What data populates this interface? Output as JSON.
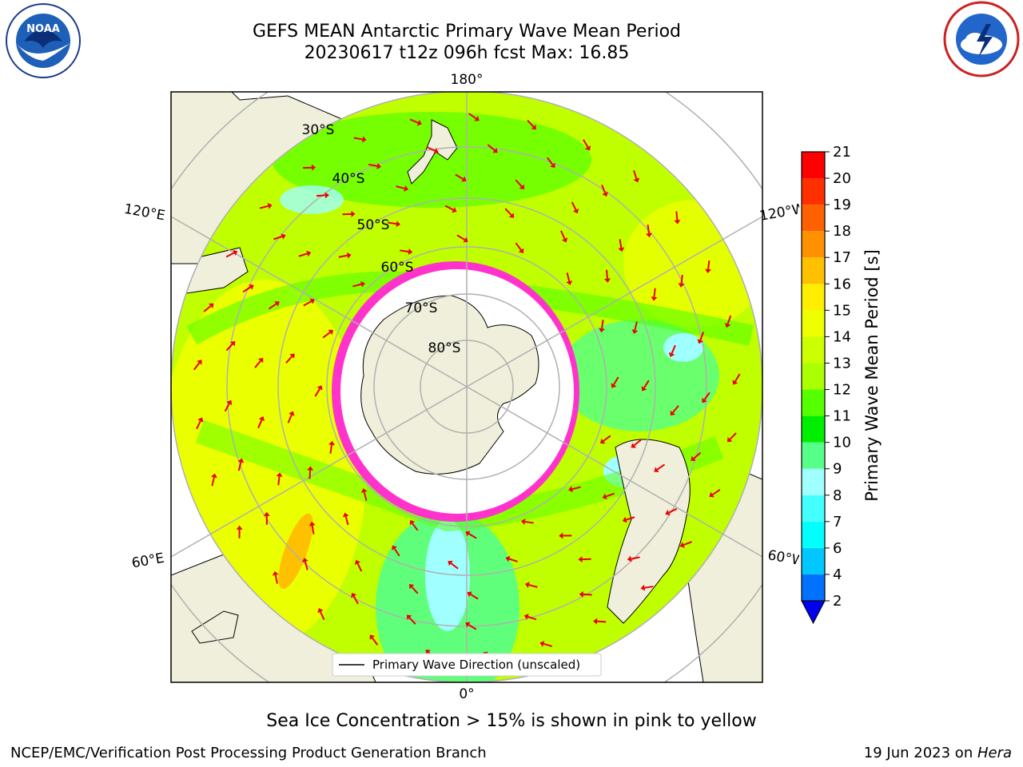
{
  "title": {
    "line1": "GEFS MEAN Antarctic Primary Wave Mean Period",
    "line2": "20230617 t12z 096h fcst   Max: 16.85"
  },
  "subtitle": "Sea Ice Concentration > 15% is shown in pink to yellow",
  "footer": {
    "left": "NCEP/EMC/Verification Post Processing Product Generation Branch",
    "right_prefix": "19 Jun 2023 on ",
    "right_machine": "Hera"
  },
  "map": {
    "longitude_labels": [
      "180°",
      "120°E",
      "120°W",
      "60°E",
      "60°W",
      "0°"
    ],
    "latitude_labels": [
      "30°S",
      "40°S",
      "50°S",
      "60°S",
      "70°S",
      "80°S"
    ],
    "legend_label": "Primary Wave Direction (unscaled)"
  },
  "colorbar": {
    "label": "Primary Wave Mean Period [s]",
    "ticks": [
      "2",
      "4",
      "6",
      "7",
      "8",
      "9",
      "10",
      "11",
      "12",
      "13",
      "14",
      "15",
      "16",
      "17",
      "18",
      "19",
      "20",
      "21"
    ],
    "colors": [
      "#0072ff",
      "#00c8ff",
      "#00ffff",
      "#44ffff",
      "#a0ffff",
      "#55ff88",
      "#00ee00",
      "#55ff00",
      "#aaff00",
      "#ccff00",
      "#eeff00",
      "#ffee00",
      "#ffc000",
      "#ff9000",
      "#ff6000",
      "#ff3000",
      "#ff0000"
    ],
    "extend_color": "#0000ee"
  },
  "colors": {
    "land": "#efefdb",
    "ice_edge": "#ff33cc",
    "arrow": "#ee0000",
    "grid": "#b0b0b0"
  }
}
